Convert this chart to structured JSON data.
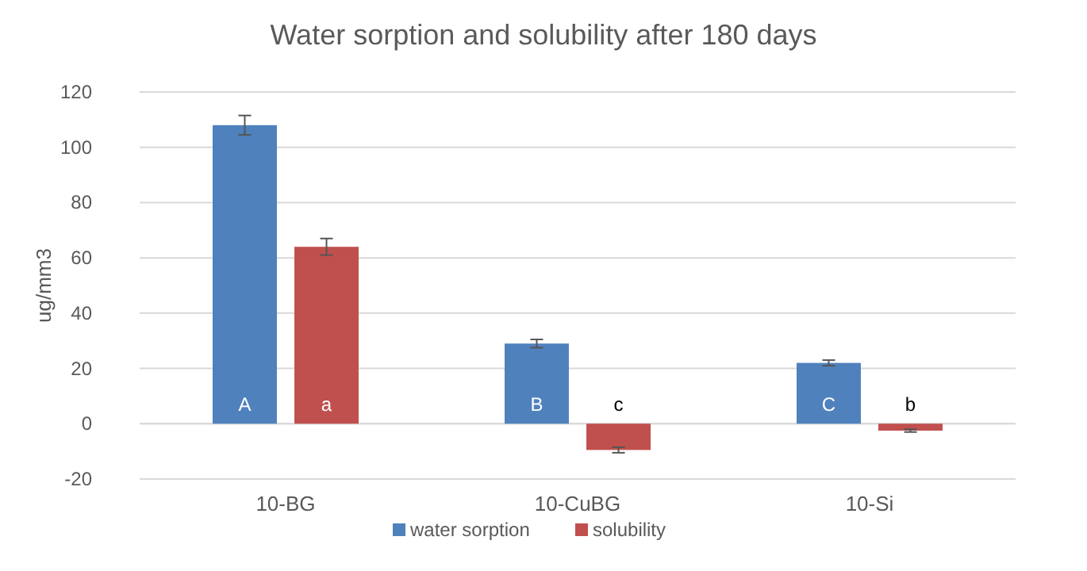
{
  "chart_data": {
    "type": "bar",
    "title": "Water sorption and solubility after 180 days",
    "ylabel": "ug/mm3",
    "categories": [
      "10-BG",
      "10-CuBG",
      "10-Si"
    ],
    "series": [
      {
        "name": "water sorption",
        "color": "#4f81bd",
        "values": [
          108,
          29,
          22
        ],
        "errors": [
          3.5,
          1.5,
          1
        ],
        "value_labels": [
          "A",
          "B",
          "C"
        ]
      },
      {
        "name": "solubility",
        "color": "#c0504d",
        "values": [
          64,
          -9.5,
          -2.5
        ],
        "errors": [
          3,
          1,
          0.5
        ],
        "value_labels": [
          "a",
          "c",
          "b"
        ]
      }
    ],
    "ylim": [
      -20,
      120
    ],
    "yticks": [
      -20,
      0,
      20,
      40,
      60,
      80,
      100,
      120
    ],
    "grid": "y",
    "legend": "bottom"
  }
}
